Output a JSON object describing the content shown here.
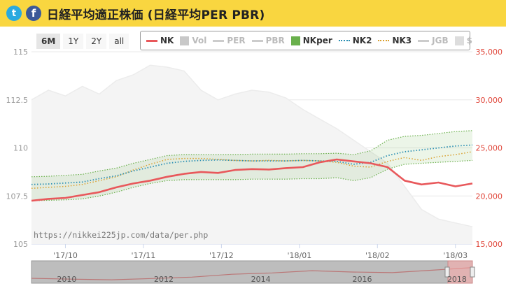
{
  "header": {
    "title": "日経平均適正株価 (日経平均PER PBR)",
    "twitter_glyph": "t",
    "facebook_glyph": "f"
  },
  "range_buttons": [
    {
      "label": "6M",
      "active": true
    },
    {
      "label": "1Y",
      "active": false
    },
    {
      "label": "2Y",
      "active": false
    },
    {
      "label": "all",
      "active": false
    }
  ],
  "legend": [
    {
      "label": "NK",
      "color": "#e8585b",
      "style": "line",
      "active": true
    },
    {
      "label": "Vol",
      "color": "#c8c8c8",
      "style": "box",
      "active": false
    },
    {
      "label": "PER",
      "color": "#cccccc",
      "style": "line",
      "active": false
    },
    {
      "label": "PBR",
      "color": "#cccccc",
      "style": "line",
      "active": false
    },
    {
      "label": "NKper",
      "color": "#6ab04c",
      "style": "box",
      "active": true
    },
    {
      "label": "NK2",
      "color": "#2b8fb3",
      "style": "dot",
      "active": true
    },
    {
      "label": "NK3",
      "color": "#d9a030",
      "style": "dot",
      "active": true
    },
    {
      "label": "JGB",
      "color": "#cccccc",
      "style": "line",
      "active": false
    },
    {
      "label": "$",
      "color": "#dddddd",
      "style": "box",
      "active": false
    }
  ],
  "watermark": "https://nikkei225jp.com/data/per.php",
  "chart_data": {
    "type": "line",
    "x_ticks": [
      "'17/10",
      "'17/11",
      "'17/12",
      "'18/01",
      "'18/02",
      "'18/03"
    ],
    "x_range": [
      0,
      26
    ],
    "y_left": {
      "ticks": [
        "105",
        "107.5",
        "110",
        "112.5",
        "115"
      ],
      "range": [
        105,
        115
      ],
      "color": "#999999"
    },
    "y_right": {
      "ticks": [
        "15,000",
        "20,000",
        "25,000",
        "30,000",
        "35,000"
      ],
      "range": [
        15000,
        35000
      ],
      "color": "#e0463a"
    },
    "series": [
      {
        "name": "NK",
        "axis": "right",
        "color": "#e8585b",
        "values": [
          19500,
          19700,
          19800,
          20100,
          20400,
          20900,
          21300,
          21600,
          22000,
          22300,
          22500,
          22400,
          22700,
          22800,
          22750,
          22900,
          23000,
          23500,
          23800,
          23600,
          23400,
          23000,
          21600,
          21200,
          21400,
          21000,
          21300
        ]
      },
      {
        "name": "NK2",
        "axis": "right",
        "color": "#2b8fb3",
        "values": [
          21200,
          21250,
          21350,
          21450,
          21800,
          22100,
          22600,
          23000,
          23400,
          23600,
          23700,
          23750,
          23700,
          23650,
          23650,
          23650,
          23700,
          23650,
          23600,
          23300,
          23500,
          24200,
          24600,
          24800,
          25000,
          25200,
          25300
        ]
      },
      {
        "name": "NK3",
        "axis": "right",
        "color": "#d9a030",
        "values": [
          20800,
          20900,
          21000,
          21200,
          21600,
          22000,
          22700,
          23300,
          23800,
          23900,
          23900,
          23800,
          23700,
          23650,
          23700,
          23650,
          23700,
          23650,
          23500,
          23100,
          23000,
          23600,
          24000,
          23700,
          24100,
          24300,
          24600
        ]
      },
      {
        "name": "NKper",
        "axis": "right",
        "color": "#6ab04c",
        "upper": [
          22000,
          22050,
          22150,
          22250,
          22600,
          22900,
          23400,
          23800,
          24200,
          24300,
          24300,
          24300,
          24300,
          24350,
          24350,
          24350,
          24400,
          24400,
          24450,
          24300,
          24700,
          25800,
          26200,
          26300,
          26500,
          26700,
          26800
        ],
        "lower": [
          19500,
          19550,
          19600,
          19700,
          20000,
          20400,
          20900,
          21300,
          21600,
          21700,
          21700,
          21700,
          21700,
          21750,
          21750,
          21750,
          21800,
          21800,
          21900,
          21600,
          21900,
          22800,
          23300,
          23400,
          23500,
          23600,
          23700
        ]
      },
      {
        "name": "JGB",
        "axis": "left",
        "color": "#ececec",
        "values": [
          112.5,
          113.0,
          112.7,
          113.2,
          112.8,
          113.5,
          113.8,
          114.3,
          114.2,
          114.0,
          113.0,
          112.5,
          112.8,
          113.0,
          112.9,
          112.6,
          112.0,
          111.5,
          111.0,
          110.4,
          109.8,
          109.2,
          108.0,
          106.8,
          106.3,
          106.1,
          105.9
        ]
      }
    ],
    "navigator": {
      "labels": [
        "2010",
        "2012",
        "2014",
        "2016",
        "2018"
      ],
      "values": [
        10500,
        9500,
        8800,
        10200,
        11800,
        15000,
        16500,
        19000,
        17500,
        16800,
        19500,
        22500
      ]
    }
  }
}
